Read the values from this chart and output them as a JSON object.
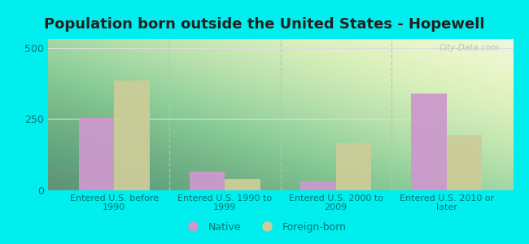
{
  "title": "Population born outside the United States - Hopewell",
  "categories": [
    "Entered U.S. before\n1990",
    "Entered U.S. 1990 to\n1999",
    "Entered U.S. 2000 to\n2009",
    "Entered U.S. 2010 or\nlater"
  ],
  "native_values": [
    255,
    65,
    30,
    340
  ],
  "foreign_values": [
    385,
    40,
    165,
    195
  ],
  "native_color": "#cc99cc",
  "foreign_color": "#cccc99",
  "background_color": "#00eeee",
  "plot_bg_color": "#e8f5e8",
  "ylim": [
    0,
    530
  ],
  "yticks": [
    0,
    250,
    500
  ],
  "bar_width": 0.32,
  "legend_native": "Native",
  "legend_foreign": "Foreign-born",
  "watermark": "City-Data.com",
  "grid_color": "#dddddd",
  "title_fontsize": 13,
  "label_color": "#007777",
  "title_color": "#222222",
  "separator_color": "#aaccaa"
}
